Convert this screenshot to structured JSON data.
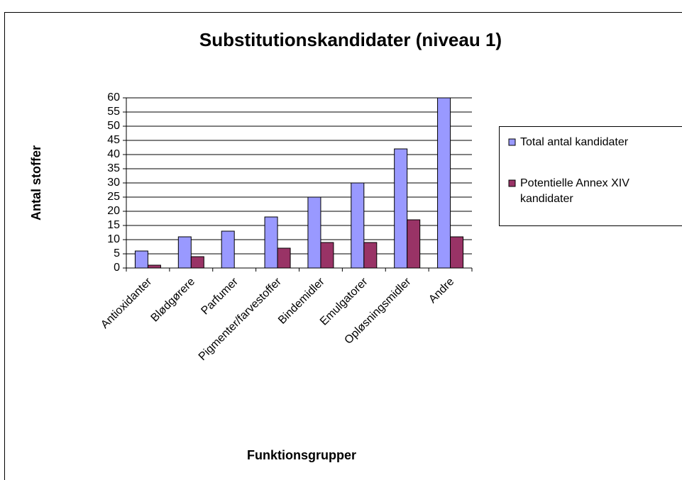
{
  "chart_data": {
    "type": "bar",
    "title": "Substitutionskandidater (niveau 1)",
    "x_label": "Funktionsgrupper",
    "y_label": "Antal stoffer",
    "categories": [
      "Antioxidanter",
      "Blødgørere",
      "Parfumer",
      "Pigmenter/farvestoffer",
      "Bindemidler",
      "Emulgatorer",
      "Opløsningsmidler",
      "Andre"
    ],
    "series": [
      {
        "name": "Total antal kandidater",
        "color": "#9999ff",
        "values": [
          6,
          11,
          13,
          18,
          25,
          30,
          42,
          60
        ]
      },
      {
        "name": "Potentielle Annex XIV kandidater",
        "color": "#993366",
        "values": [
          1,
          4,
          0,
          7,
          9,
          9,
          17,
          11
        ]
      }
    ],
    "ylim": [
      0,
      60
    ],
    "yticks": [
      0,
      5,
      10,
      15,
      20,
      25,
      30,
      35,
      40,
      45,
      50,
      55,
      60
    ],
    "grid": true,
    "legend": "right"
  }
}
